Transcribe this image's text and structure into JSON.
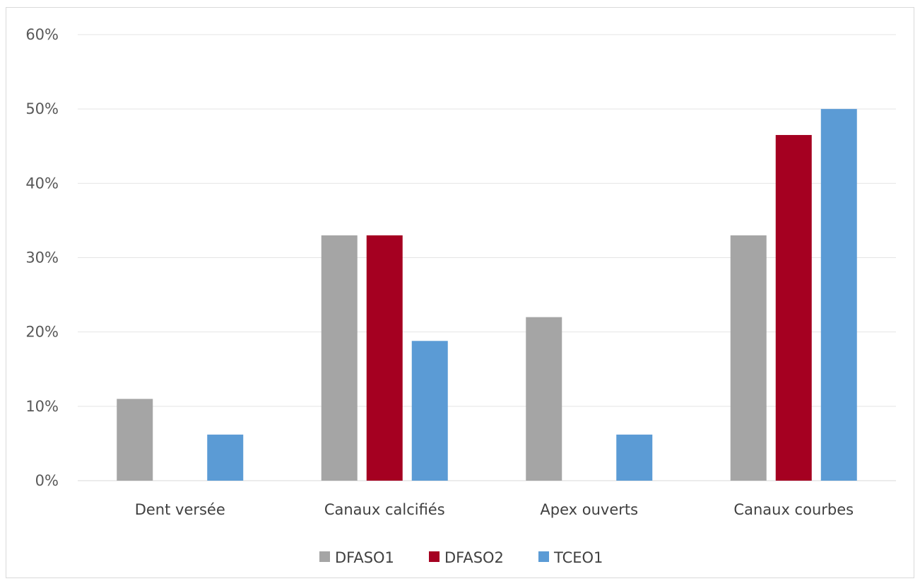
{
  "chart_data": {
    "type": "bar",
    "title": "",
    "xlabel": "",
    "ylabel": "",
    "categories": [
      "Dent versée",
      "Canaux calcifiés",
      "Apex ouverts",
      "Canaux courbes"
    ],
    "series": [
      {
        "name": "DFASO1",
        "color": "#a5a5a5",
        "values": [
          11,
          33,
          22,
          33
        ]
      },
      {
        "name": "DFASO2",
        "color": "#a50021",
        "values": [
          0,
          33,
          0,
          46.5
        ]
      },
      {
        "name": "TCEO1",
        "color": "#5b9bd5",
        "values": [
          6.2,
          18.8,
          6.2,
          50
        ]
      }
    ],
    "ylim": [
      0,
      60
    ],
    "yticks": [
      0,
      10,
      20,
      30,
      40,
      50,
      60
    ],
    "ytick_labels": [
      "0%",
      "10%",
      "20%",
      "30%",
      "40%",
      "50%",
      "60%"
    ],
    "grid": true,
    "legend_position": "bottom"
  }
}
